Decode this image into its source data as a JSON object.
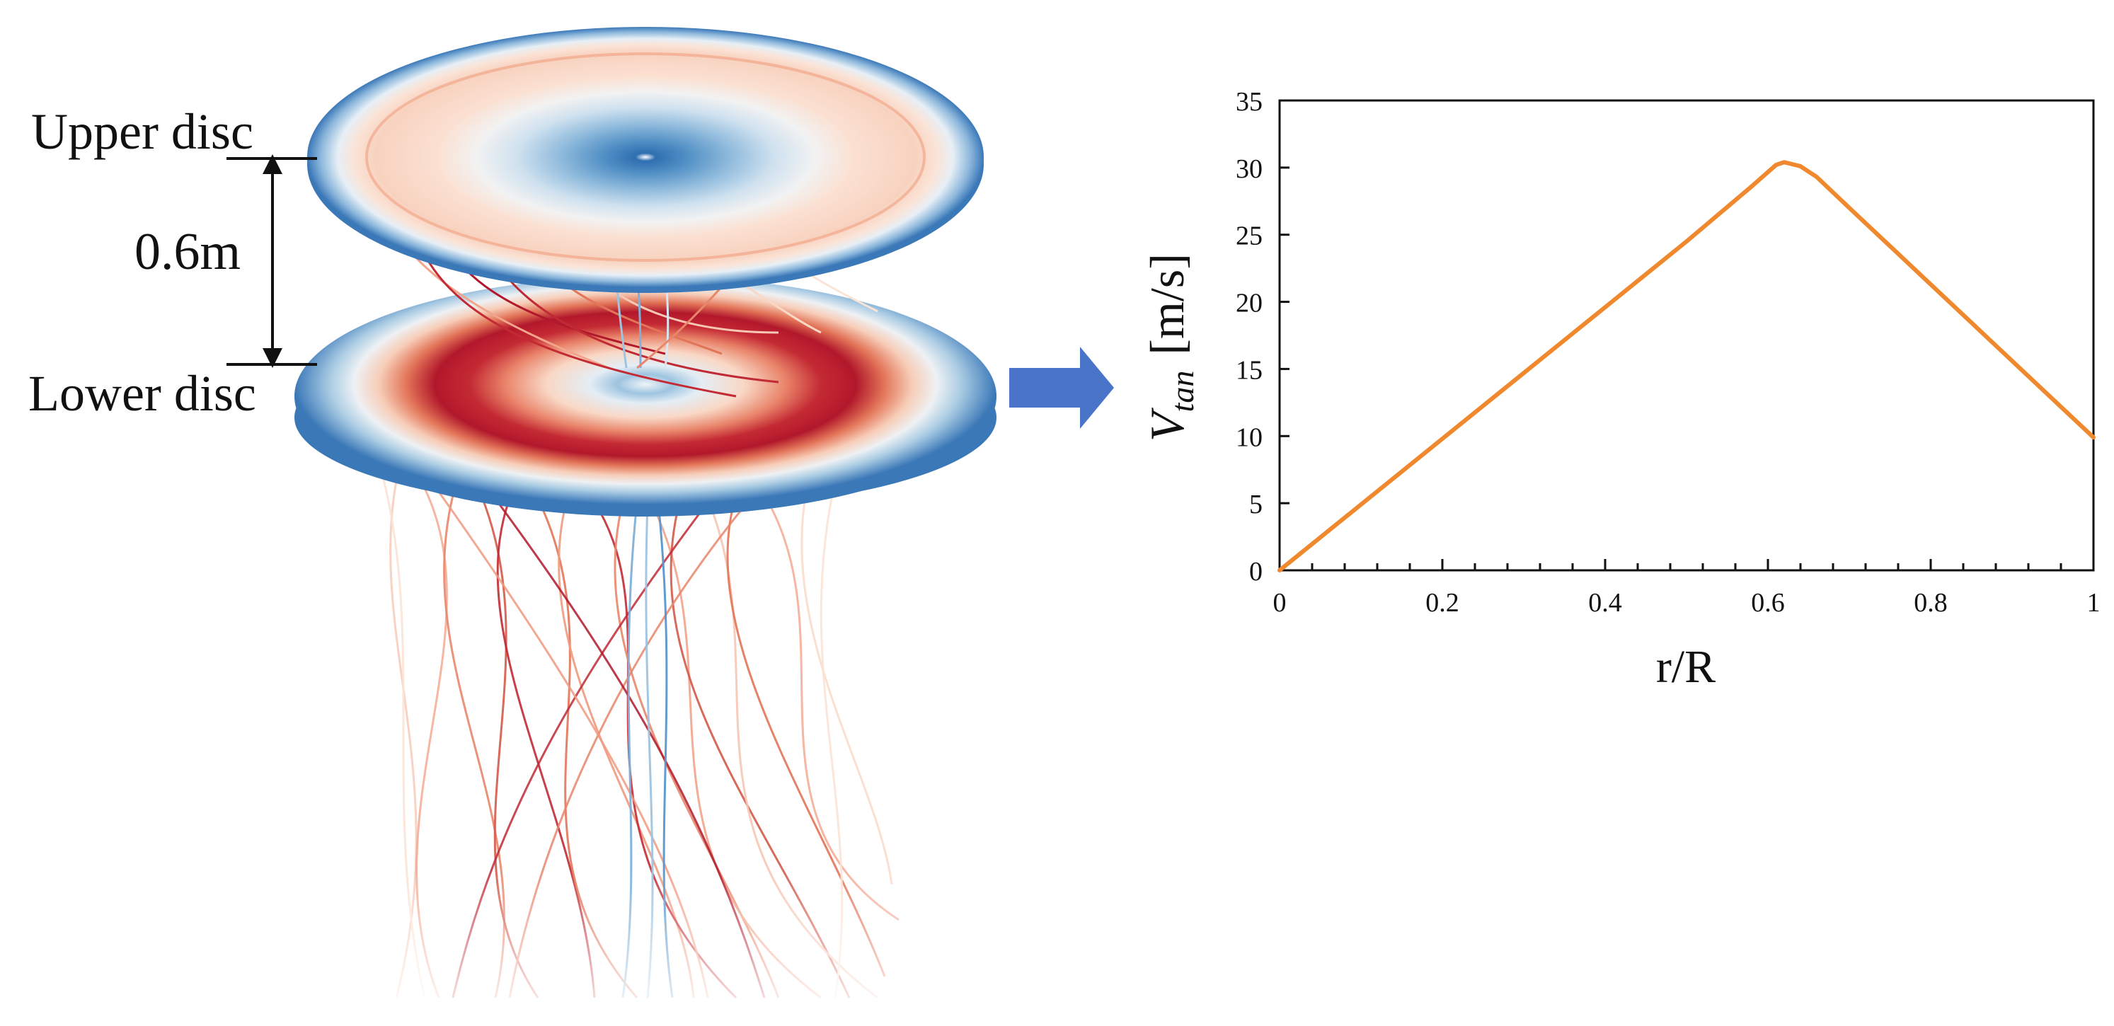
{
  "diagram": {
    "upper_disc_label": "Upper disc",
    "lower_disc_label": "Lower disc",
    "gap_label": "0.6m",
    "colors": {
      "cool_dark": "#2f6fb0",
      "cool_mid": "#7fb0d8",
      "cool_light": "#d6e6f2",
      "neutral": "#f5f3f2",
      "warm_light": "#f7cdb8",
      "warm_mid": "#e27458",
      "warm_dark": "#b2182b",
      "arrow": "#4a74c8"
    }
  },
  "chart_data": {
    "type": "line",
    "x": [
      0,
      0.1,
      0.2,
      0.3,
      0.4,
      0.5,
      0.58,
      0.61,
      0.62,
      0.64,
      0.66,
      0.7,
      0.8,
      0.9,
      1.0
    ],
    "y": [
      0,
      4.9,
      9.8,
      14.7,
      19.6,
      24.5,
      28.6,
      30.2,
      30.4,
      30.1,
      29.3,
      27.0,
      21.3,
      15.6,
      9.9
    ],
    "ylabel_main": "V",
    "ylabel_sub": "tan",
    "ylabel_unit": "[m/s]",
    "xlabel": "r/R",
    "xlim": [
      0,
      1
    ],
    "ylim": [
      0,
      35
    ],
    "x_ticks": [
      "0",
      "0.2",
      "0.4",
      "0.6",
      "0.8",
      "1"
    ],
    "y_ticks": [
      "0",
      "5",
      "10",
      "15",
      "20",
      "25",
      "30",
      "35"
    ],
    "line_color": "#f0882e",
    "grid": false
  }
}
